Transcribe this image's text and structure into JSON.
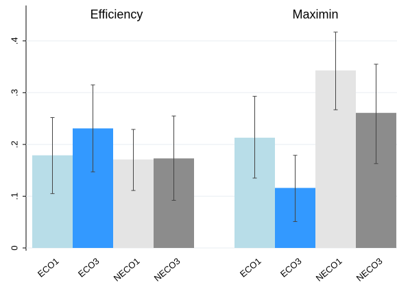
{
  "chart_data": [
    {
      "type": "bar",
      "title": "Efficiency",
      "categories": [
        "ECO1",
        "ECO3",
        "NECO1",
        "NECO3"
      ],
      "values": [
        0.179,
        0.231,
        0.171,
        0.173
      ],
      "ci_low": [
        0.105,
        0.147,
        0.111,
        0.092
      ],
      "ci_high": [
        0.252,
        0.315,
        0.229,
        0.255
      ],
      "colors": [
        "#b8dde8",
        "#3399ff",
        "#e4e4e4",
        "#8c8c8c"
      ],
      "ylim": [
        0,
        0.44
      ],
      "yticks": [
        0,
        {
          "value": 0.1,
          "label": ".1"
        },
        {
          "value": 0.2,
          "label": ".2"
        },
        {
          "value": 0.3,
          "label": ".3"
        },
        {
          "value": 0.4,
          "label": ".4"
        }
      ],
      "grid": true
    },
    {
      "type": "bar",
      "title": "Maximin",
      "categories": [
        "ECO1",
        "ECO3",
        "NECO1",
        "NECO3"
      ],
      "values": [
        0.213,
        0.116,
        0.343,
        0.261
      ],
      "ci_low": [
        0.135,
        0.051,
        0.267,
        0.163
      ],
      "ci_high": [
        0.293,
        0.179,
        0.417,
        0.355
      ],
      "colors": [
        "#b8dde8",
        "#3399ff",
        "#e4e4e4",
        "#8c8c8c"
      ],
      "ylim": [
        0,
        0.44
      ],
      "yticks": [
        0,
        {
          "value": 0.1,
          "label": ".1"
        },
        {
          "value": 0.2,
          "label": ".2"
        },
        {
          "value": 0.3,
          "label": ".3"
        },
        {
          "value": 0.4,
          "label": ".4"
        }
      ],
      "grid": true
    }
  ]
}
